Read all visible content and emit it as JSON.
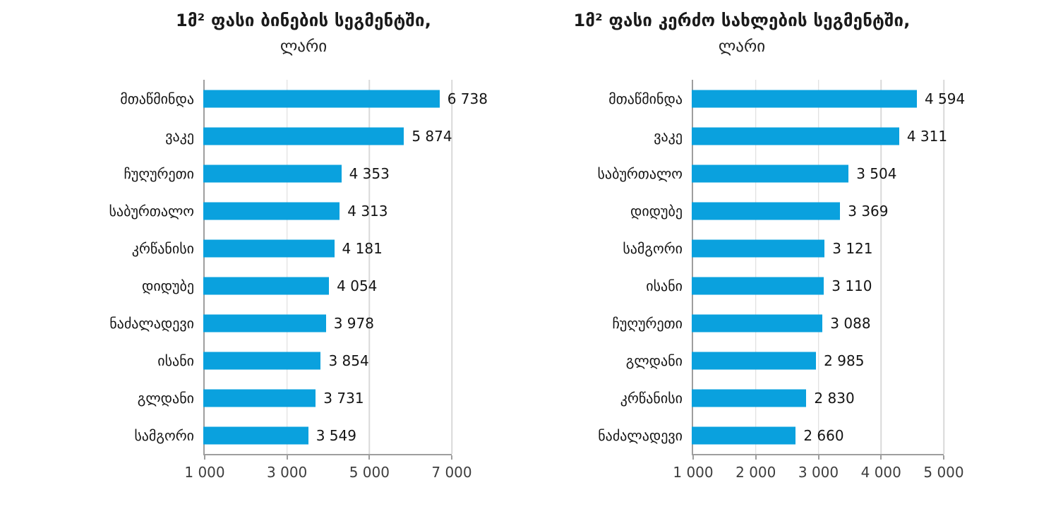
{
  "colors": {
    "bar": "#0aa1de",
    "grid": "#d9d9d9",
    "axis": "#9e9e9e",
    "title_text": "#1a1a1a",
    "label_text": "#141414",
    "tick_text": "#3d3d3d",
    "background": "#ffffff"
  },
  "chart_data": [
    {
      "type": "bar",
      "orientation": "horizontal",
      "title": "1მ² ფასი ბინების სეგმენტში,",
      "subtitle": "ლარი",
      "categories": [
        "მთაწმინდა",
        "ვაკე",
        "ჩუღურეთი",
        "საბურთალო",
        "კრწანისი",
        "დიდუბე",
        "ნაძალადევი",
        "ისანი",
        "გლდანი",
        "სამგორი"
      ],
      "values": [
        6738,
        5874,
        4353,
        4313,
        4181,
        4054,
        3978,
        3854,
        3731,
        3549
      ],
      "value_labels": [
        "6 738",
        "5 874",
        "4 353",
        "4 313",
        "4 181",
        "4 054",
        "3 978",
        "3 854",
        "3 731",
        "3 549"
      ],
      "xlim": [
        1000,
        7000
      ],
      "xticks": [
        1000,
        3000,
        5000,
        7000
      ],
      "xtick_labels": [
        "1 000",
        "3 000",
        "5 000",
        "7 000"
      ],
      "grid": true,
      "legend": false,
      "bars_start_at_axis_min": true
    },
    {
      "type": "bar",
      "orientation": "horizontal",
      "title": "1მ² ფასი კერძო სახლების სეგმენტში,",
      "subtitle": "ლარი",
      "categories": [
        "მთაწმინდა",
        "ვაკე",
        "საბურთალო",
        "დიდუბე",
        "სამგორი",
        "ისანი",
        "ჩუღურეთი",
        "გლდანი",
        "კრწანისი",
        "ნაძალადევი"
      ],
      "values": [
        4594,
        4311,
        3504,
        3369,
        3121,
        3110,
        3088,
        2985,
        2830,
        2660
      ],
      "value_labels": [
        "4 594",
        "4 311",
        "3 504",
        "3 369",
        "3 121",
        "3 110",
        "3 088",
        "2 985",
        "2 830",
        "2 660"
      ],
      "xlim": [
        1000,
        5000
      ],
      "xticks": [
        1000,
        2000,
        3000,
        4000,
        5000
      ],
      "xtick_labels": [
        "1 000",
        "2 000",
        "3 000",
        "4 000",
        "5 000"
      ],
      "grid": true,
      "legend": false,
      "bars_start_at_axis_min": true
    }
  ]
}
